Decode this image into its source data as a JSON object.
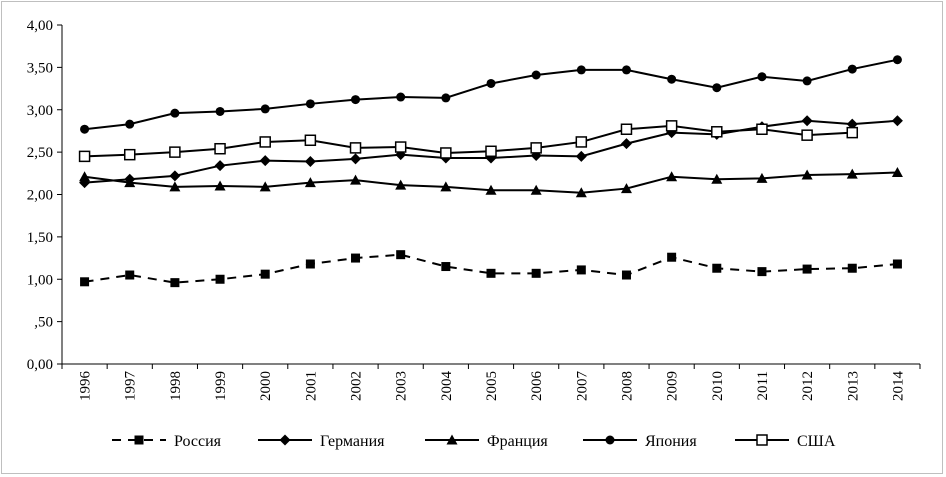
{
  "chart_data": {
    "type": "line",
    "title": "",
    "xlabel": "",
    "ylabel": "",
    "ylim": [
      0,
      4
    ],
    "y_ticks": [
      "0,00",
      ",50",
      "1,00",
      "1,50",
      "2,00",
      "2,50",
      "3,00",
      "3,50",
      "4,00"
    ],
    "y_tick_values": [
      0,
      0.5,
      1.0,
      1.5,
      2.0,
      2.5,
      3.0,
      3.5,
      4.0
    ],
    "grid": "none",
    "legend_position": "bottom",
    "categories": [
      "1996",
      "1997",
      "1998",
      "1999",
      "2000",
      "2001",
      "2002",
      "2003",
      "2004",
      "2005",
      "2006",
      "2007",
      "2008",
      "2009",
      "2010",
      "2011",
      "2012",
      "2013",
      "2014"
    ],
    "series": [
      {
        "name": "Россия",
        "marker": "square-filled",
        "line": "dashed",
        "color": "#000000",
        "values": [
          0.97,
          1.05,
          0.96,
          1.0,
          1.06,
          1.18,
          1.25,
          1.29,
          1.15,
          1.07,
          1.07,
          1.11,
          1.05,
          1.26,
          1.13,
          1.09,
          1.12,
          1.13,
          1.18
        ]
      },
      {
        "name": "Германия",
        "marker": "diamond-filled",
        "line": "solid",
        "color": "#000000",
        "values": [
          2.14,
          2.18,
          2.22,
          2.34,
          2.4,
          2.39,
          2.42,
          2.47,
          2.43,
          2.43,
          2.46,
          2.45,
          2.6,
          2.73,
          2.71,
          2.8,
          2.87,
          2.83,
          2.87
        ]
      },
      {
        "name": "Франция",
        "marker": "triangle-filled",
        "line": "solid",
        "color": "#000000",
        "values": [
          2.21,
          2.14,
          2.09,
          2.1,
          2.09,
          2.14,
          2.17,
          2.11,
          2.09,
          2.05,
          2.05,
          2.02,
          2.07,
          2.21,
          2.18,
          2.19,
          2.23,
          2.24,
          2.26
        ]
      },
      {
        "name": "Япония",
        "marker": "circle-filled",
        "line": "solid",
        "color": "#000000",
        "values": [
          2.77,
          2.83,
          2.96,
          2.98,
          3.01,
          3.07,
          3.12,
          3.15,
          3.14,
          3.31,
          3.41,
          3.47,
          3.47,
          3.36,
          3.26,
          3.39,
          3.34,
          3.48,
          3.59
        ]
      },
      {
        "name": "США",
        "marker": "square-open",
        "line": "solid",
        "color": "#000000",
        "values": [
          2.45,
          2.47,
          2.5,
          2.54,
          2.62,
          2.64,
          2.55,
          2.56,
          2.49,
          2.51,
          2.55,
          2.62,
          2.77,
          2.81,
          2.74,
          2.77,
          2.7,
          2.73,
          null
        ]
      }
    ]
  }
}
